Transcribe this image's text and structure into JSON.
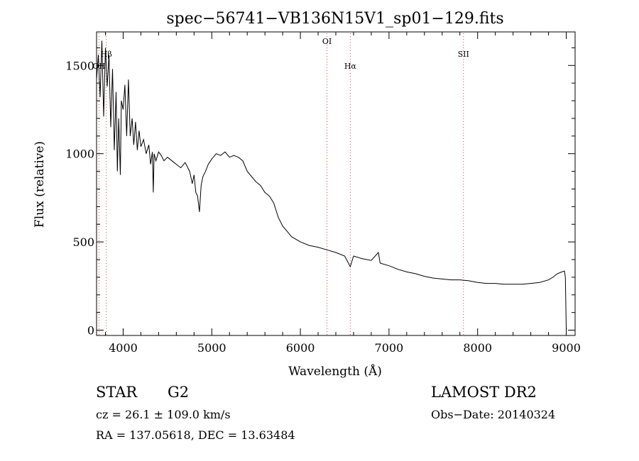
{
  "chart_data": {
    "type": "line",
    "title": "spec−56741−VB136N15V1_sp01−129.fits",
    "xlabel": "Wavelength (Å)",
    "ylabel": "Flux (relative)",
    "xlim": [
      3700,
      9100
    ],
    "ylim": [
      -30,
      1690
    ],
    "x_ticks": [
      {
        "value": 4000,
        "label": "4000"
      },
      {
        "value": 5000,
        "label": "5000"
      },
      {
        "value": 6000,
        "label": "6000"
      },
      {
        "value": 7000,
        "label": "7000"
      },
      {
        "value": 8000,
        "label": "8000"
      },
      {
        "value": 9000,
        "label": "9000"
      }
    ],
    "y_ticks": [
      {
        "value": 0,
        "label": "0"
      },
      {
        "value": 500,
        "label": "500"
      },
      {
        "value": 1000,
        "label": "1000"
      },
      {
        "value": 1500,
        "label": "1500"
      }
    ],
    "line_markers": [
      {
        "name": "OII",
        "wavelength": 3727,
        "label": "OII"
      },
      {
        "name": "Hbeta-marker",
        "wavelength": 3810,
        "label": "Hβ"
      },
      {
        "name": "OI",
        "wavelength": 6300,
        "label": "OI"
      },
      {
        "name": "Halpha",
        "wavelength": 6563,
        "label": "Hα"
      },
      {
        "name": "SII",
        "wavelength": 7840,
        "label": "SII"
      }
    ],
    "series": [
      {
        "name": "spectrum",
        "color": "#000000",
        "marker_color": "#cc4444",
        "x": [
          3700,
          3720,
          3740,
          3760,
          3780,
          3800,
          3820,
          3840,
          3860,
          3880,
          3900,
          3920,
          3935,
          3950,
          3968,
          3980,
          4000,
          4020,
          4040,
          4060,
          4080,
          4101,
          4120,
          4140,
          4160,
          4180,
          4200,
          4230,
          4260,
          4290,
          4310,
          4330,
          4340,
          4350,
          4370,
          4400,
          4430,
          4460,
          4500,
          4550,
          4600,
          4650,
          4700,
          4750,
          4780,
          4800,
          4820,
          4840,
          4861,
          4880,
          4900,
          4930,
          4960,
          5000,
          5050,
          5100,
          5150,
          5200,
          5250,
          5300,
          5350,
          5400,
          5450,
          5500,
          5550,
          5600,
          5650,
          5700,
          5750,
          5800,
          5850,
          5900,
          6000,
          6100,
          6200,
          6300,
          6400,
          6500,
          6563,
          6600,
          6700,
          6800,
          6880,
          6900,
          7000,
          7100,
          7200,
          7300,
          7400,
          7500,
          7600,
          7700,
          7800,
          7900,
          8000,
          8100,
          8200,
          8300,
          8400,
          8500,
          8600,
          8700,
          8800,
          8850,
          8900,
          8950,
          8980,
          8990,
          9000,
          9005
        ],
        "y": [
          1420,
          1560,
          1320,
          1640,
          1210,
          1600,
          1380,
          1560,
          1150,
          1480,
          1020,
          1350,
          900,
          1200,
          880,
          1300,
          1250,
          1390,
          1100,
          1420,
          1100,
          1200,
          1050,
          1180,
          1020,
          1130,
          1040,
          1080,
          1000,
          1050,
          940,
          1010,
          780,
          1000,
          960,
          1010,
          990,
          960,
          980,
          960,
          940,
          920,
          950,
          900,
          830,
          880,
          780,
          760,
          670,
          820,
          870,
          900,
          940,
          970,
          1000,
          990,
          1010,
          980,
          990,
          980,
          960,
          900,
          870,
          840,
          820,
          780,
          760,
          720,
          640,
          590,
          560,
          530,
          500,
          480,
          470,
          455,
          440,
          420,
          360,
          420,
          405,
          395,
          440,
          380,
          365,
          345,
          330,
          320,
          305,
          295,
          290,
          285,
          285,
          280,
          270,
          265,
          265,
          260,
          260,
          260,
          265,
          270,
          285,
          300,
          320,
          330,
          335,
          300,
          10,
          5
        ]
      }
    ]
  },
  "info": {
    "object_class": "STAR",
    "subclass": "G2",
    "survey": "LAMOST DR2",
    "cz": "cz = 26.1 ± 109.0 km/s",
    "obs_date": "Obs−Date: 20140324",
    "coords": "RA = 137.05618, DEC =  13.63484"
  }
}
